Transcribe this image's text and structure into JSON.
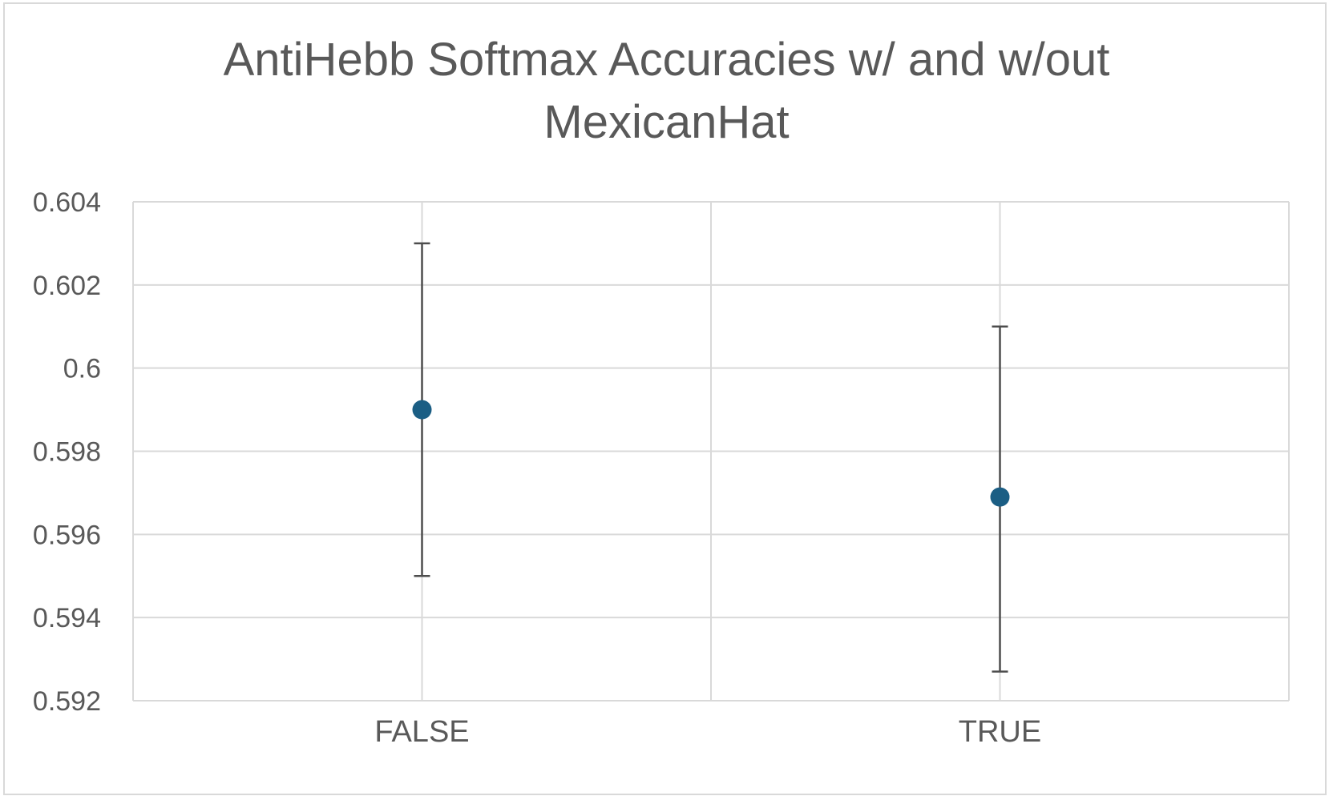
{
  "chart_data": {
    "type": "scatter",
    "title_lines": [
      "AntiHebb Softmax Accuracies w/ and w/out",
      "MexicanHat"
    ],
    "categories": [
      "FALSE",
      "TRUE"
    ],
    "series": [
      {
        "values": [
          0.599,
          0.5969
        ],
        "error_low": [
          0.595,
          0.5927
        ],
        "error_high": [
          0.603,
          0.601
        ]
      }
    ],
    "ylim": [
      0.592,
      0.604
    ],
    "y_ticks": [
      0.592,
      0.594,
      0.596,
      0.598,
      0.6,
      0.602,
      0.604
    ],
    "y_tick_labels": [
      "0.592",
      "0.594",
      "0.596",
      "0.598",
      "0.6",
      "0.602",
      "0.604"
    ],
    "xlabel": "",
    "ylabel": "",
    "grid": true,
    "legend": "none",
    "colors": {
      "marker": "#1b5e84",
      "error_bar": "#4d4d4d",
      "grid": "#d9d9d9",
      "text": "#595959"
    }
  }
}
